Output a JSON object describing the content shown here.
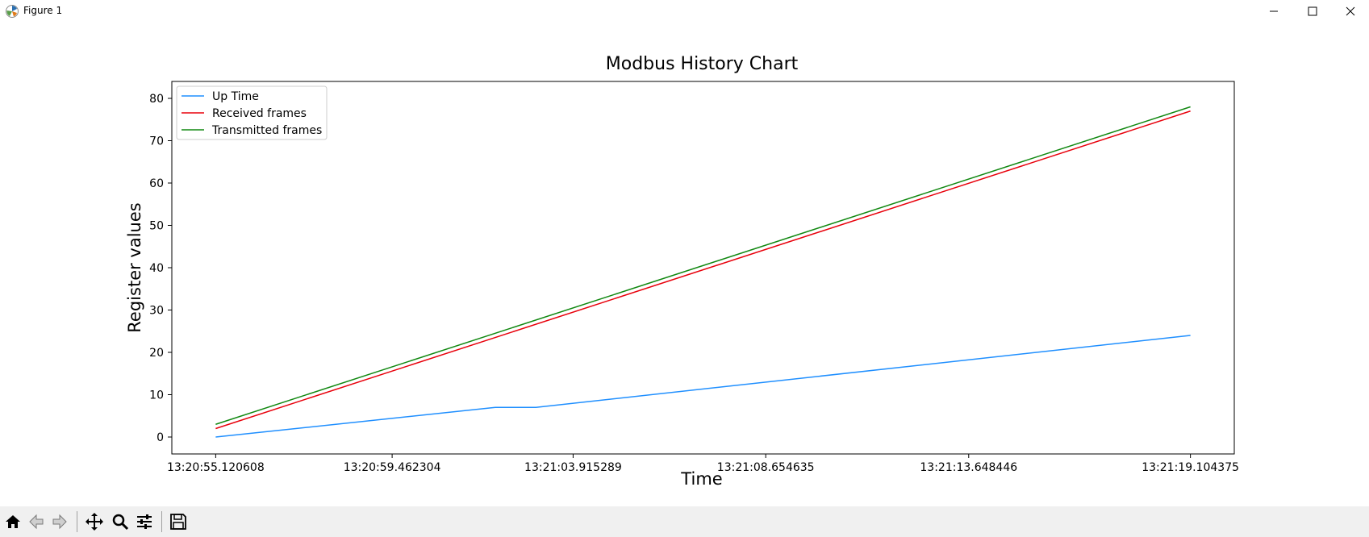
{
  "window": {
    "title": "Figure 1"
  },
  "toolbar": {
    "items": [
      "home-icon",
      "back-arrow-icon",
      "forward-arrow-icon",
      "pan-icon",
      "zoom-icon",
      "configure-subplots-icon",
      "save-icon"
    ]
  },
  "colors": {
    "up_time": "#1f8fff",
    "received": "#e8000b",
    "transmitted": "#118811"
  },
  "chart_data": {
    "type": "line",
    "title": "Modbus History Chart",
    "xlabel": "Time",
    "ylabel": "Register values",
    "x": [
      "13:20:55.120608",
      "13:20:59.462304",
      "13:21:03.915289",
      "13:21:08.654635",
      "13:21:13.648446",
      "13:21:19.104375"
    ],
    "xticks": [
      "13:20:55.120608",
      "13:20:59.462304",
      "13:21:03.915289",
      "13:21:08.654635",
      "13:21:13.648446",
      "13:21:19.104375"
    ],
    "yticks": [
      0,
      10,
      20,
      30,
      40,
      50,
      60,
      70,
      80
    ],
    "ylim": [
      -4,
      84
    ],
    "grid": false,
    "legend_position": "upper-left",
    "series": [
      {
        "name": "Up Time",
        "color": "#1f8fff",
        "points": [
          {
            "x": "13:20:55.120608",
            "y": 0
          },
          {
            "x": "13:21:02.0",
            "y": 7
          },
          {
            "x": "13:21:03.0",
            "y": 7
          },
          {
            "x": "13:21:19.104375",
            "y": 24
          }
        ]
      },
      {
        "name": "Received frames",
        "color": "#e8000b",
        "points": [
          {
            "x": "13:20:55.120608",
            "y": 2
          },
          {
            "x": "13:21:19.104375",
            "y": 77
          }
        ]
      },
      {
        "name": "Transmitted frames",
        "color": "#118811",
        "points": [
          {
            "x": "13:20:55.120608",
            "y": 3
          },
          {
            "x": "13:21:19.104375",
            "y": 78
          }
        ]
      }
    ]
  }
}
